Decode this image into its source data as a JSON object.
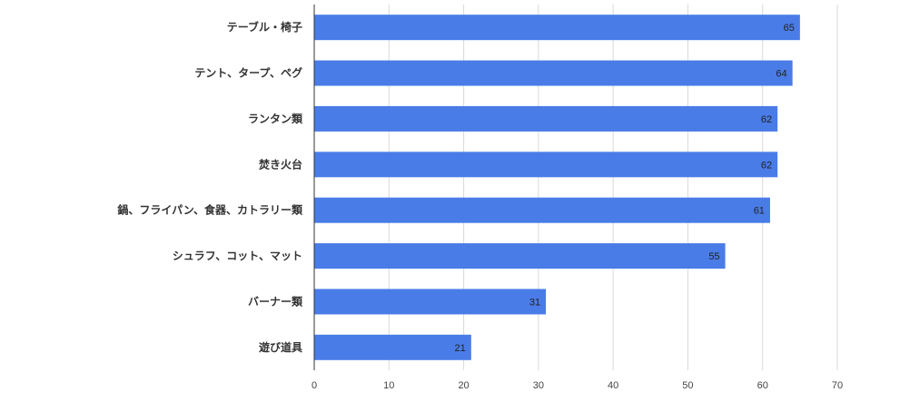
{
  "chart_data": {
    "type": "bar",
    "orientation": "horizontal",
    "categories": [
      "テーブル・椅子",
      "テント、タープ、ペグ",
      "ランタン類",
      "焚き火台",
      "鍋、フライパン、食器、カトラリー類",
      "シュラフ、コット、マット",
      "バーナー類",
      "遊び道具"
    ],
    "values": [
      65,
      64,
      62,
      62,
      61,
      55,
      31,
      21
    ],
    "data_labels": [
      "65",
      "64",
      "62",
      "62",
      "61",
      "55",
      "31",
      "21"
    ],
    "xlim": [
      0,
      70
    ],
    "xticks": [
      0,
      10,
      20,
      30,
      40,
      50,
      60,
      70
    ],
    "xtick_labels": [
      "0",
      "10",
      "20",
      "30",
      "40",
      "50",
      "60",
      "70"
    ],
    "title": "",
    "xlabel": "",
    "ylabel": "",
    "grid": "vertical",
    "legend": "none",
    "bar_color": "#4a7ce8",
    "grid_color": "#d9d9d9"
  }
}
